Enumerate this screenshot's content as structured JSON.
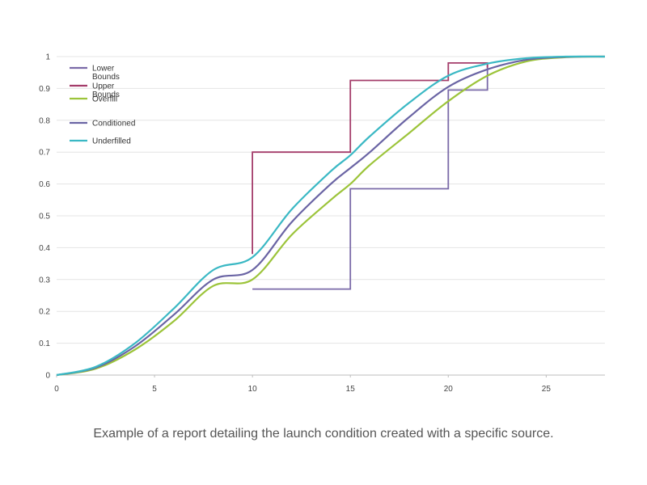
{
  "chart_data": {
    "type": "line",
    "title": "",
    "xlabel": "",
    "ylabel": "",
    "xlim": [
      0,
      28
    ],
    "ylim": [
      0,
      1
    ],
    "xticks": [
      0,
      5,
      10,
      15,
      20,
      25
    ],
    "yticks": [
      0,
      0.1,
      0.2,
      0.3,
      0.4,
      0.5,
      0.6,
      0.7,
      0.8,
      0.9,
      1
    ],
    "grid": true,
    "legend_position": "top-left",
    "series": [
      {
        "name": "Lower Bounds",
        "style": "step",
        "color": "#7a6aa8",
        "x": [
          10,
          15,
          15,
          20,
          20,
          22,
          22
        ],
        "y": [
          0.27,
          0.27,
          0.585,
          0.585,
          0.895,
          0.895,
          0.98
        ]
      },
      {
        "name": "Upper Bounds",
        "style": "step",
        "color": "#a43c6a",
        "x": [
          10,
          10,
          15,
          15,
          20,
          20,
          22,
          22
        ],
        "y": [
          0.38,
          0.7,
          0.7,
          0.925,
          0.925,
          0.98,
          0.98,
          0.965
        ]
      },
      {
        "name": "Overfill",
        "style": "curve",
        "color": "#9cc43a",
        "x": [
          0,
          2,
          4,
          6,
          8,
          10,
          12,
          14,
          15,
          16,
          18,
          20,
          22,
          24,
          26,
          28
        ],
        "y": [
          0,
          0.02,
          0.08,
          0.17,
          0.28,
          0.3,
          0.44,
          0.55,
          0.6,
          0.66,
          0.76,
          0.86,
          0.94,
          0.985,
          0.998,
          1
        ]
      },
      {
        "name": "Conditioned",
        "style": "curve",
        "color": "#6a64a4",
        "x": [
          0,
          2,
          4,
          6,
          8,
          10,
          12,
          14,
          15,
          16,
          18,
          20,
          22,
          24,
          26,
          28
        ],
        "y": [
          0,
          0.023,
          0.09,
          0.19,
          0.3,
          0.33,
          0.48,
          0.6,
          0.65,
          0.7,
          0.81,
          0.905,
          0.96,
          0.99,
          0.999,
          1
        ]
      },
      {
        "name": "Underfilled",
        "style": "curve",
        "color": "#3ab8c4",
        "x": [
          0,
          2,
          4,
          6,
          8,
          10,
          12,
          14,
          15,
          16,
          18,
          20,
          22,
          24,
          26,
          28
        ],
        "y": [
          0,
          0.026,
          0.1,
          0.21,
          0.33,
          0.37,
          0.52,
          0.64,
          0.69,
          0.75,
          0.855,
          0.94,
          0.978,
          0.995,
          1,
          1
        ]
      }
    ]
  },
  "caption": "Example of a report detailing the launch condition created with a specific source.",
  "legend": {
    "items": [
      {
        "line1": "Lower",
        "line2": "Bounds"
      },
      {
        "line1": "Upper",
        "line2": "Bounds"
      },
      {
        "line1": "Overfill",
        "line2": ""
      },
      {
        "line1": "Conditioned",
        "line2": ""
      },
      {
        "line1": "Underfilled",
        "line2": ""
      }
    ]
  }
}
